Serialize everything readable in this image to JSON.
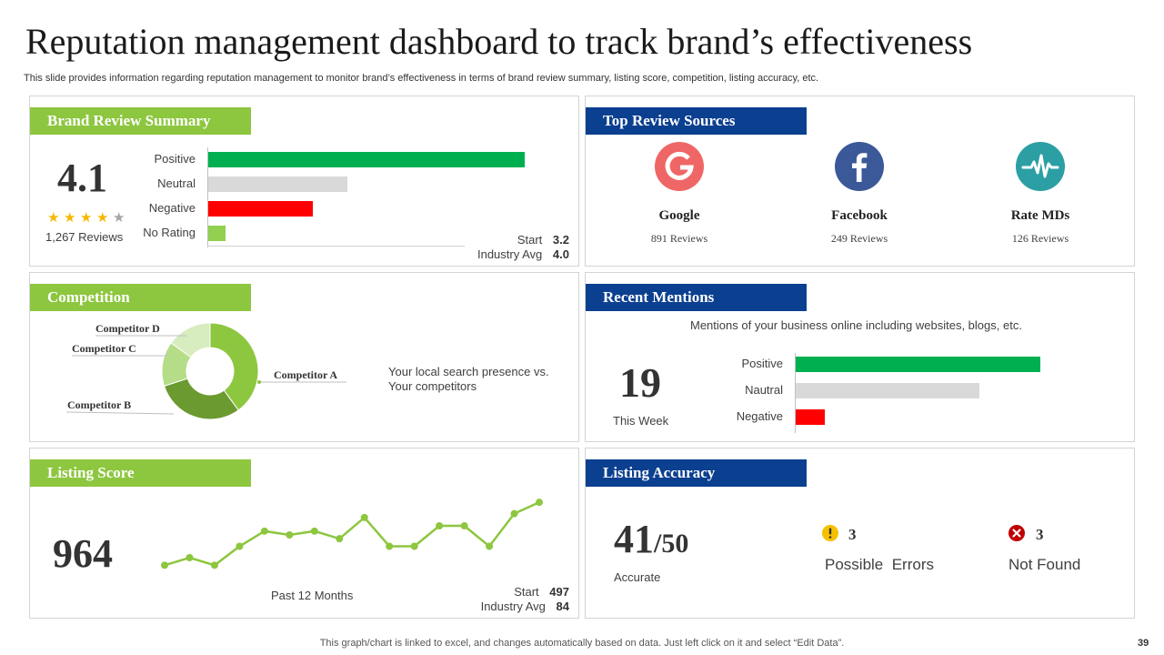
{
  "title": "Reputation management dashboard to track brand’s effectiveness",
  "subtitle": "This slide provides information regarding reputation management to monitor brand’s effectiveness in terms of brand review summary, listing score, competition, listing accuracy, etc.",
  "colors": {
    "green": "#8dc63f",
    "blue": "#0b3f8f",
    "bar_positive": "#00b050",
    "bar_neutral": "#d9d9d9",
    "bar_negative": "#ff0000",
    "bar_norating": "#92d050"
  },
  "brand_review": {
    "header": "Brand Review Summary",
    "score": "4.1",
    "reviews": "1,267 Reviews",
    "rating_stars": 4,
    "start_label": "Start",
    "start_value": "3.2",
    "industry_label": "Industry Avg",
    "industry_value": "4.0",
    "chart_data": {
      "type": "bar",
      "categories": [
        "Positive",
        "Neutral",
        "Negative",
        "No Rating"
      ],
      "values": [
        1.0,
        0.44,
        0.33,
        0.055
      ],
      "xlim": [
        0,
        1
      ]
    }
  },
  "top_sources": {
    "header": "Top Review Sources",
    "sources": [
      {
        "name": "Google",
        "reviews": "891 Reviews",
        "icon": "google-icon",
        "color": "#ee6766"
      },
      {
        "name": "Facebook",
        "reviews": "249 Reviews",
        "icon": "facebook-icon",
        "color": "#3b5998"
      },
      {
        "name": "Rate MDs",
        "reviews": "126 Reviews",
        "icon": "heartbeat-icon",
        "color": "#2c9fa5"
      }
    ]
  },
  "competition": {
    "header": "Competition",
    "note_line1": "Your local search presence vs.",
    "note_line2": "Your competitors",
    "chart_data": {
      "type": "pie",
      "labels": [
        "Competitor A",
        "Competitor B",
        "Competitor C",
        "Competitor D"
      ],
      "values": [
        40,
        30,
        15,
        15
      ],
      "colors": [
        "#8dc63f",
        "#6b9a30",
        "#b5dd87",
        "#d7ecbf"
      ]
    }
  },
  "recent_mentions": {
    "header": "Recent Mentions",
    "description": "Mentions of your business online including websites, blogs, etc.",
    "count": "19",
    "period": "This Week",
    "chart_data": {
      "type": "bar",
      "categories": [
        "Positive",
        "Nautral",
        "Negative"
      ],
      "values": [
        1.0,
        0.75,
        0.12
      ],
      "xlim": [
        0,
        1
      ]
    }
  },
  "listing_score": {
    "header": "Listing Score",
    "score": "964",
    "period_label": "Past 12 Months",
    "start_label": "Start",
    "start_value": "497",
    "industry_label": "Industry Avg",
    "industry_value": "84",
    "chart_data": {
      "type": "line",
      "x": [
        1,
        2,
        3,
        4,
        5,
        6,
        7,
        8,
        9,
        10,
        11,
        12,
        13,
        14,
        15,
        16
      ],
      "values": [
        2.0,
        3.0,
        2.0,
        4.5,
        6.5,
        6.0,
        6.5,
        5.5,
        8.3,
        4.5,
        4.5,
        7.2,
        7.2,
        4.5,
        8.8,
        10.3
      ],
      "ylim": [
        0,
        12
      ]
    }
  },
  "listing_accuracy": {
    "header": "Listing Accuracy",
    "value": "41",
    "total": "/50",
    "label": "Accurate",
    "errors_count": "3",
    "errors_label": "Possible  Errors",
    "notfound_count": "3",
    "notfound_label": "Not Found"
  },
  "footer": "This graph/chart is linked to excel, and changes automatically based on data. Just left click on it and select “Edit Data”.",
  "page_number": "39"
}
